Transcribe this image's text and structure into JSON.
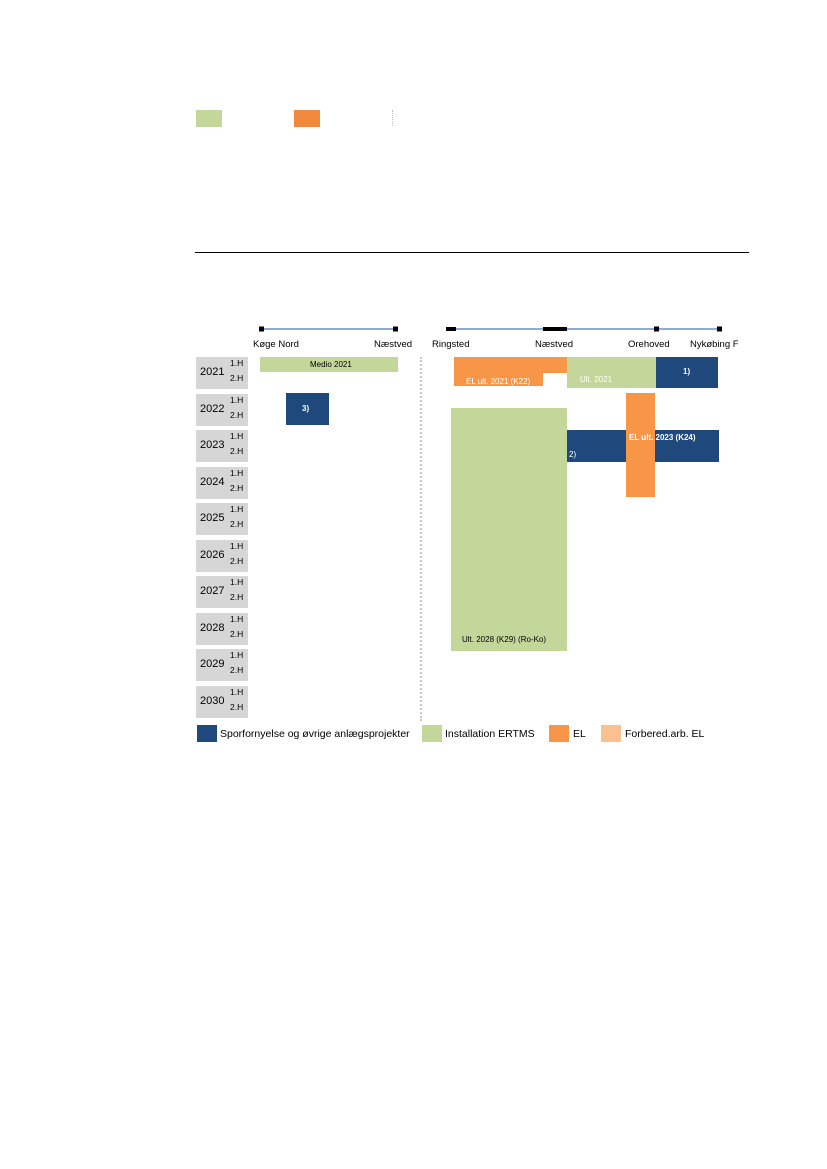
{
  "colors": {
    "track_renewal": "#1f497d",
    "ertms": "#c4d79b",
    "el": "#f79646",
    "el_prep": "#fac090",
    "header_cells": "#d6d6d6",
    "line": "#4a7bbf"
  },
  "chart_data": {
    "type": "gantt",
    "title": "",
    "sections": [
      {
        "name": "left",
        "stations": [
          "Køge Nord",
          "Næstved"
        ]
      },
      {
        "name": "right",
        "stations": [
          "Ringsted",
          "Næstved",
          "Orehoved",
          "Nykøbing F"
        ]
      }
    ],
    "years": [
      "2021",
      "2022",
      "2023",
      "2024",
      "2025",
      "2026",
      "2027",
      "2028",
      "2029",
      "2030"
    ],
    "halves": [
      "1.H",
      "2.H"
    ],
    "legend": [
      {
        "key": "track_renewal",
        "label": "Sporfornyelse og øvrige anlægsprojekter"
      },
      {
        "key": "ertms",
        "label": "Installation ERTMS"
      },
      {
        "key": "el",
        "label": "EL"
      },
      {
        "key": "el_prep",
        "label": "Forbered.arb. EL"
      }
    ],
    "bars": [
      {
        "category": "ertms",
        "section": "left",
        "from": "Køge Nord",
        "to": "Næstved",
        "start": "2021 1.H",
        "end": "2021 1.H",
        "label": "Medio 2021"
      },
      {
        "category": "track_renewal",
        "section": "left",
        "from": "Køge Nord",
        "to": "Næstved",
        "start": "2022 1.H",
        "end": "2022 2.H",
        "label": "3)"
      },
      {
        "category": "el",
        "section": "right",
        "from": "Ringsted",
        "to": "Næstved",
        "start": "2021 1.H",
        "end": "2021 2.H",
        "label": "EL ult. 2021 (K22)"
      },
      {
        "category": "ertms",
        "section": "right",
        "from": "Næstved",
        "to": "Orehoved",
        "start": "2021 1.H",
        "end": "2021 2.H",
        "label": "Ult. 2021"
      },
      {
        "category": "track_renewal",
        "section": "right",
        "from": "Orehoved",
        "to": "Nykøbing F",
        "start": "2021 1.H",
        "end": "2021 2.H",
        "label": "1)"
      },
      {
        "category": "ertms",
        "section": "right",
        "from": "Ringsted",
        "to": "Næstved",
        "start": "2022 2.H",
        "end": "2028 2.H",
        "label": "Ult. 2028 (K29) (Ro-Ko)"
      },
      {
        "category": "track_renewal",
        "section": "right",
        "from": "Næstved",
        "to": "Orehoved",
        "start": "2022 1.H",
        "end": "2024 2.H",
        "label": "2)"
      },
      {
        "category": "el",
        "section": "right",
        "from": "Næstved",
        "to": "Nykøbing F",
        "start": "2023 1.H",
        "end": "2023 2.H",
        "label": "EL ult. 2023 (K24)"
      }
    ]
  }
}
